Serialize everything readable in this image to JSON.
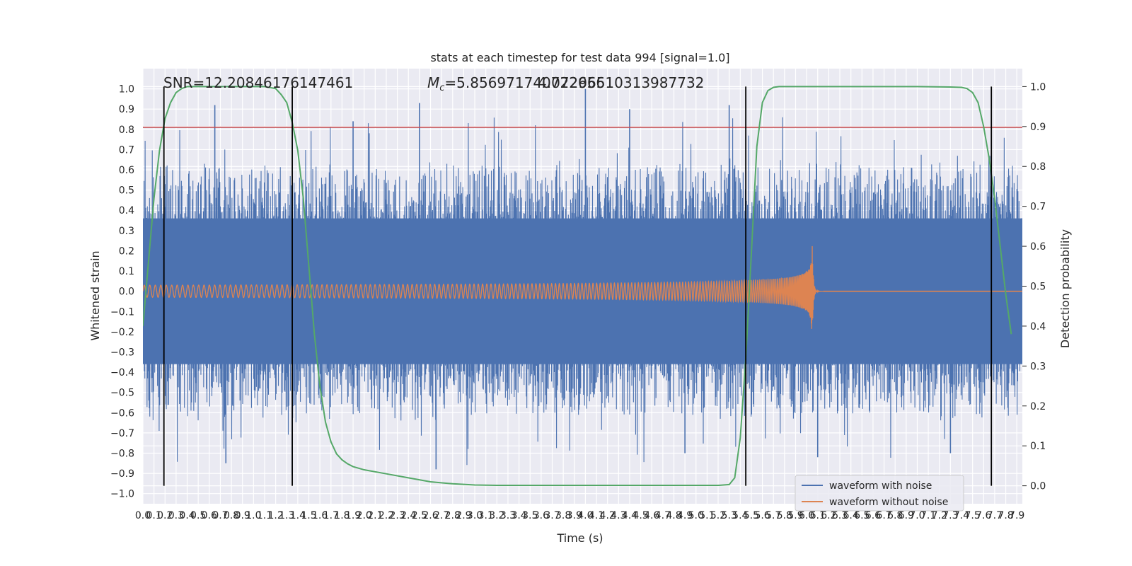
{
  "chart_data": {
    "type": "line",
    "title": "stats at each timestep for test data 994 [signal=1.0]",
    "xlabel": "Time (s)",
    "ylabel": "Whitened strain",
    "y2label": "Detection probability",
    "xlim": [
      0.0,
      7.95
    ],
    "ylim": [
      -1.05,
      1.1
    ],
    "y2lim": [
      -0.045,
      1.045
    ],
    "x_ticks": [
      0.0,
      0.1,
      0.2,
      0.3,
      0.4,
      0.5,
      0.6,
      0.7,
      0.8,
      0.9,
      1.0,
      1.1,
      1.2,
      1.3,
      1.4,
      1.5,
      1.6,
      1.7,
      1.8,
      1.9,
      2.0,
      2.1,
      2.2,
      2.3,
      2.4,
      2.5,
      2.6,
      2.7,
      2.8,
      2.9,
      3.0,
      3.1,
      3.2,
      3.3,
      3.4,
      3.5,
      3.6,
      3.7,
      3.8,
      3.9,
      4.0,
      4.1,
      4.2,
      4.3,
      4.4,
      4.5,
      4.6,
      4.7,
      4.8,
      4.9,
      5.0,
      5.1,
      5.2,
      5.3,
      5.4,
      5.5,
      5.6,
      5.7,
      5.8,
      5.9,
      6.0,
      6.1,
      6.2,
      6.3,
      6.4,
      6.5,
      6.6,
      6.7,
      6.8,
      6.9,
      7.0,
      7.1,
      7.2,
      7.3,
      7.4,
      7.5,
      7.6,
      7.7,
      7.8,
      7.9
    ],
    "x_tick_labels": [
      "0.0",
      "0.1",
      "0.2",
      "0.3",
      "0.4",
      "0.5",
      "0.6",
      "0.7",
      "0.8",
      "0.9",
      "1.0",
      "1.1",
      "1.2",
      "1.3",
      "1.4",
      "1.5",
      "1.6",
      "1.7",
      "1.8",
      "1.9",
      "2.0",
      "2.1",
      "2.2",
      "2.3",
      "2.4",
      "2.5",
      "2.6",
      "2.7",
      "2.8",
      "2.9",
      "3.0",
      "3.1",
      "3.2",
      "3.3",
      "3.4",
      "3.5",
      "3.6",
      "3.7",
      "3.8",
      "3.9",
      "4.0",
      "4.1",
      "4.2",
      "4.3",
      "4.4",
      "4.5",
      "4.6",
      "4.7",
      "4.8",
      "4.9",
      "5.0",
      "5.1",
      "5.2",
      "5.3",
      "5.4",
      "5.5",
      "5.6",
      "5.7",
      "5.8",
      "5.9",
      "6.0",
      "6.1",
      "6.2",
      "6.3",
      "6.4",
      "6.5",
      "6.6",
      "6.7",
      "6.8",
      "6.9",
      "7.0",
      "7.1",
      "7.2",
      "7.3",
      "7.4",
      "7.5",
      "7.6",
      "7.7",
      "7.8",
      "7.9"
    ],
    "y_ticks": [
      1.0,
      0.9,
      0.8,
      0.7,
      0.6,
      0.5,
      0.4,
      0.3,
      0.2,
      0.1,
      0.0,
      -0.1,
      -0.2,
      -0.3,
      -0.4,
      -0.5,
      -0.6,
      -0.7,
      -0.8,
      -0.9,
      -1.0
    ],
    "y_tick_labels": [
      "1.0",
      "0.9",
      "0.8",
      "0.7",
      "0.6",
      "0.5",
      "0.4",
      "0.3",
      "0.2",
      "0.1",
      "0.0",
      "−0.1",
      "−0.2",
      "−0.3",
      "−0.4",
      "−0.5",
      "−0.6",
      "−0.7",
      "−0.8",
      "−0.9",
      "−1.0"
    ],
    "y2_ticks": [
      1.0,
      0.9,
      0.8,
      0.7,
      0.6,
      0.5,
      0.4,
      0.3,
      0.2,
      0.1,
      0.0
    ],
    "y2_tick_labels": [
      "1.0",
      "0.9",
      "0.8",
      "0.7",
      "0.6",
      "0.5",
      "0.4",
      "0.3",
      "0.2",
      "0.1",
      "0.0"
    ],
    "grid": true,
    "legend_position": "lower-right",
    "annotations": {
      "snr": "SNR=12.20846176147461",
      "mc_symbol": "M",
      "mc_subscript": "c",
      "mc_value": "=5.856971740722656",
      "overlap": "4.07296510313987732"
    },
    "series": [
      {
        "name": "waveform with noise",
        "color": "#4c72b0",
        "noise_envelope": {
          "core_half_width": 0.36,
          "typical_peak_range": [
            0.3,
            0.62
          ],
          "max_spike": 1.0,
          "min_spike": -0.91
        }
      },
      {
        "name": "waveform without noise",
        "color": "#dd8452",
        "chirp": {
          "t_start": 0.0,
          "t_merger": 6.05,
          "amplitude_start": 0.03,
          "amplitude_end": 0.24,
          "freq_start": 20,
          "freq_end": 70,
          "ringdown_until": 6.15
        }
      },
      {
        "name": "detection probability",
        "color": "#55a868",
        "axis": "right",
        "x": [
          0.0,
          0.05,
          0.1,
          0.15,
          0.2,
          0.25,
          0.3,
          0.35,
          0.4,
          0.45,
          0.5,
          0.6,
          0.7,
          0.8,
          0.9,
          1.0,
          1.1,
          1.2,
          1.25,
          1.3,
          1.35,
          1.4,
          1.45,
          1.5,
          1.55,
          1.6,
          1.65,
          1.7,
          1.75,
          1.8,
          1.85,
          1.9,
          2.0,
          2.2,
          2.4,
          2.6,
          2.8,
          3.0,
          3.2,
          3.4,
          3.6,
          3.8,
          4.0,
          4.2,
          4.4,
          4.6,
          4.8,
          5.0,
          5.2,
          5.3,
          5.35,
          5.4,
          5.45,
          5.5,
          5.55,
          5.6,
          5.65,
          5.7,
          5.75,
          5.8,
          6.0,
          6.5,
          7.0,
          7.3,
          7.4,
          7.45,
          7.5,
          7.55,
          7.6,
          7.65,
          7.7,
          7.75,
          7.8,
          7.85
        ],
        "y": [
          0.4,
          0.56,
          0.72,
          0.84,
          0.92,
          0.96,
          0.985,
          0.995,
          1.0,
          1.0,
          1.0,
          1.0,
          1.0,
          1.0,
          1.0,
          1.0,
          1.0,
          0.995,
          0.98,
          0.96,
          0.91,
          0.84,
          0.72,
          0.55,
          0.38,
          0.25,
          0.16,
          0.11,
          0.08,
          0.065,
          0.055,
          0.048,
          0.04,
          0.03,
          0.02,
          0.01,
          0.005,
          0.002,
          0.001,
          0.001,
          0.001,
          0.001,
          0.001,
          0.001,
          0.001,
          0.001,
          0.001,
          0.001,
          0.001,
          0.003,
          0.02,
          0.12,
          0.32,
          0.58,
          0.85,
          0.96,
          0.99,
          0.998,
          1.0,
          1.0,
          1.0,
          1.0,
          1.0,
          0.999,
          0.998,
          0.995,
          0.985,
          0.96,
          0.9,
          0.82,
          0.72,
          0.6,
          0.48,
          0.38
        ]
      }
    ],
    "hlines": [
      {
        "y": 0.81,
        "color": "#c44e52"
      }
    ],
    "vlines": [
      0.19,
      1.35,
      5.45,
      7.67
    ],
    "vlines_y2_range": [
      0.0,
      1.0
    ],
    "vline_color": "#000000"
  }
}
